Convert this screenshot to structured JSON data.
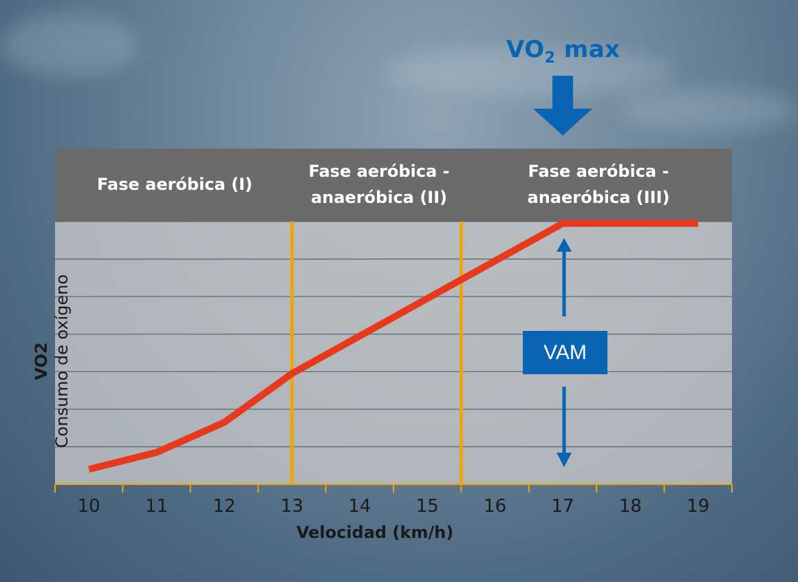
{
  "chart_data": {
    "type": "line",
    "x": [
      10,
      11,
      12,
      13,
      14,
      15,
      16,
      17,
      18,
      19
    ],
    "series": [
      {
        "x": [
          10,
          11,
          12,
          13,
          14,
          15,
          16,
          17,
          19
        ],
        "y": [
          0.4,
          0.85,
          1.65,
          2.95,
          3.95,
          4.95,
          5.95,
          6.95,
          6.95
        ]
      }
    ],
    "xlim": [
      9.5,
      19.5
    ],
    "ylim": [
      0,
      7
    ],
    "xlabel": "Velocidad (km/h)",
    "ylabel_bold": "VO2",
    "ylabel": "Consumo de oxígeno",
    "phase_boundaries": [
      13,
      15.5
    ],
    "phases": [
      {
        "label": "Fase aeróbica (I)",
        "from": 9.5,
        "to": 13
      },
      {
        "label": "Fase aeróbica -\nanaeróbica (II)",
        "from": 13,
        "to": 15.5
      },
      {
        "label": "Fase aeróbica -\nanaeróbica (III)",
        "from": 15.5,
        "to": 19.5
      }
    ],
    "annotations": {
      "vo2max": {
        "label": "VO",
        "sub": "2",
        "suffix": " max",
        "x": 17
      },
      "vam": {
        "label": "VAM",
        "x": 17
      }
    },
    "grid": true,
    "colors": {
      "line": "#e8391c",
      "boundary": "#f2a20c",
      "arrow": "#0a64b4",
      "header": "#6b6b6b",
      "plot_bg": "#c8c8c8",
      "grid": "#5a6a78",
      "axis": "#f2a20c"
    }
  }
}
